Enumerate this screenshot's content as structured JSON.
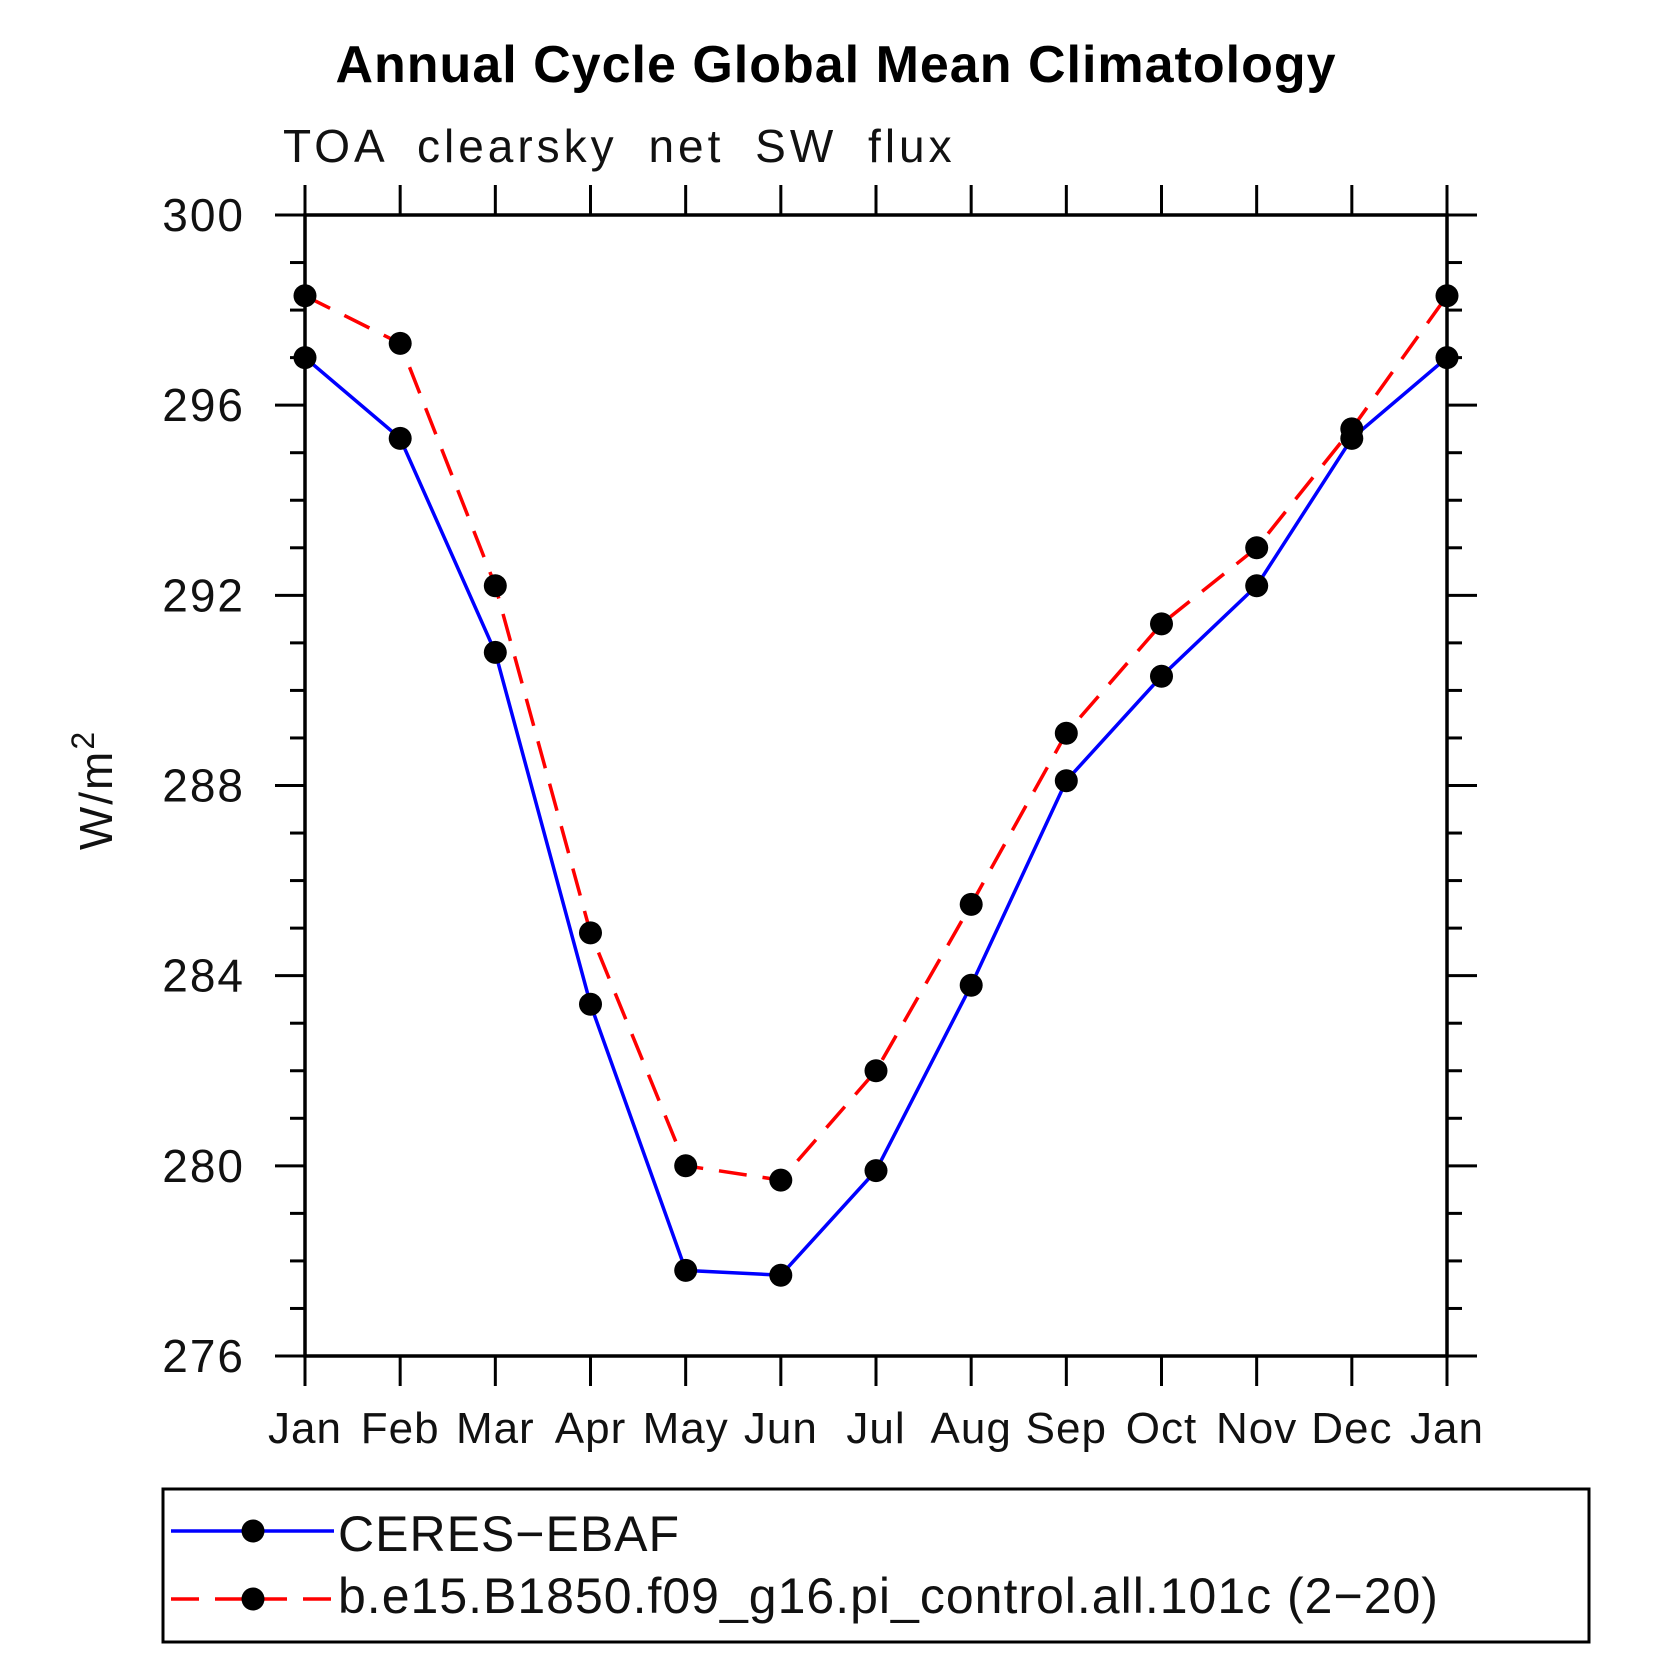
{
  "chart_data": {
    "type": "line",
    "title": "Annual Cycle Global Mean Climatology",
    "subtitle": "TOA clearsky net SW flux",
    "xlabel": "",
    "ylabel": "W/m²",
    "categories": [
      "Jan",
      "Feb",
      "Mar",
      "Apr",
      "May",
      "Jun",
      "Jul",
      "Aug",
      "Sep",
      "Oct",
      "Nov",
      "Dec",
      "Jan"
    ],
    "ylim": [
      276,
      300
    ],
    "ytick_major_step": 4,
    "ytick_minor_step": 1,
    "ytick_major_labels": [
      "276",
      "280",
      "284",
      "288",
      "292",
      "296",
      "300"
    ],
    "grid": false,
    "legend_position": "bottom",
    "axis_color": "#000000",
    "marker_shape": "circle",
    "series": [
      {
        "name": "CERES−EBAF",
        "color": "#0000FF",
        "style": "solid",
        "marker_color": "#000000",
        "values": [
          297.0,
          295.3,
          290.8,
          283.4,
          277.8,
          277.7,
          279.9,
          283.8,
          288.1,
          290.3,
          292.2,
          295.3,
          297.0
        ]
      },
      {
        "name": "b.e15.B1850.f09_g16.pi_control.all.101c (2−20)",
        "color": "#FF0000",
        "style": "dashed",
        "marker_color": "#000000",
        "values": [
          298.3,
          297.3,
          292.2,
          284.9,
          280.0,
          279.7,
          282.0,
          285.5,
          289.1,
          291.4,
          293.0,
          295.5,
          298.3
        ]
      }
    ]
  }
}
